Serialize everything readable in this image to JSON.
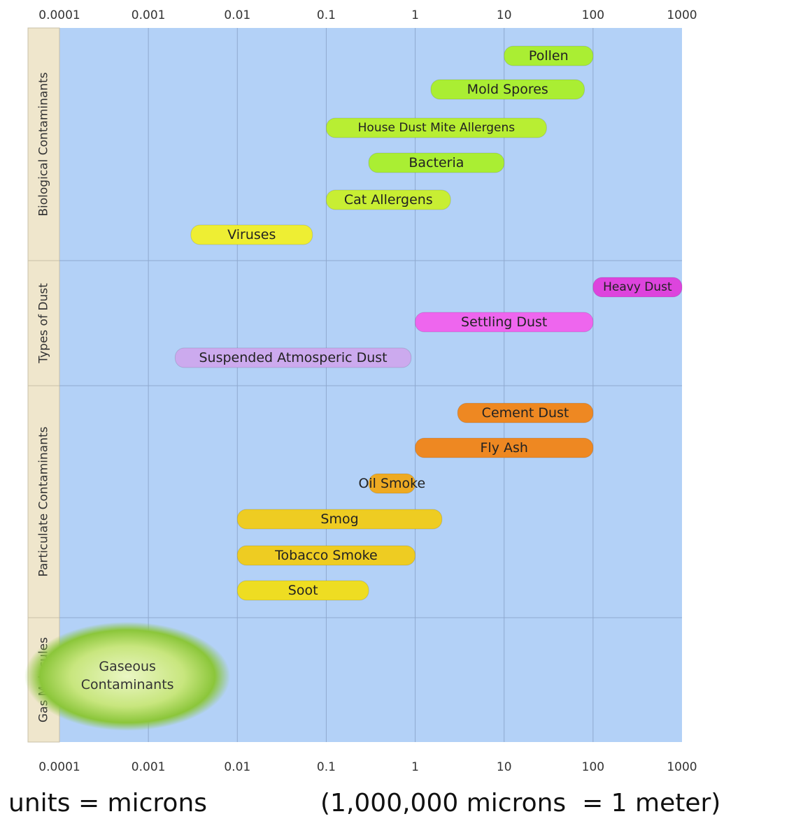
{
  "chart_data": {
    "type": "bar",
    "orientation": "horizontal-range",
    "x_scale": "log",
    "xlim": [
      0.0001,
      1000
    ],
    "x_tick_labels": [
      "0.0001",
      "0.001",
      "0.01",
      "0.1",
      "1",
      "10",
      "100",
      "1000"
    ],
    "x_ticks": [
      0.0001,
      0.001,
      0.01,
      0.1,
      1,
      10,
      100,
      1000
    ],
    "grid": true,
    "background_color": "#b3d1f7",
    "groups": [
      {
        "name": "Biological Contaminants",
        "items": [
          {
            "label": "Pollen",
            "min": 10,
            "max": 100,
            "color": "#aaee33"
          },
          {
            "label": "Mold Spores",
            "min": 1.5,
            "max": 80,
            "color": "#aaee33"
          },
          {
            "label": "House Dust Mite Allergens",
            "min": 0.1,
            "max": 30,
            "color": "#b8ee33"
          },
          {
            "label": "Bacteria",
            "min": 0.3,
            "max": 10,
            "color": "#aaee33"
          },
          {
            "label": "Cat Allergens",
            "min": 0.1,
            "max": 2.5,
            "color": "#c8ee33"
          },
          {
            "label": "Viruses",
            "min": 0.003,
            "max": 0.07,
            "color": "#eeee33"
          }
        ]
      },
      {
        "name": "Types of Dust",
        "items": [
          {
            "label": "Heavy Dust",
            "min": 100,
            "max": 1000,
            "color": "#dd44dd"
          },
          {
            "label": "Settling Dust",
            "min": 1,
            "max": 100,
            "color": "#ee66ee"
          },
          {
            "label": "Suspended Atmosperic Dust",
            "min": 0.002,
            "max": 0.9,
            "color": "#ccaaee"
          }
        ]
      },
      {
        "name": "Particulate Contaminants",
        "items": [
          {
            "label": "Cement Dust",
            "min": 3,
            "max": 100,
            "color": "#ee8822"
          },
          {
            "label": "Fly Ash",
            "min": 1,
            "max": 100,
            "color": "#ee8822"
          },
          {
            "label": "Oil Smoke",
            "min": 0.3,
            "max": 1,
            "color": "#eeaa22"
          },
          {
            "label": "Smog",
            "min": 0.01,
            "max": 2,
            "color": "#eecc22"
          },
          {
            "label": "Tobacco Smoke",
            "min": 0.01,
            "max": 1,
            "color": "#eecc22"
          },
          {
            "label": "Soot",
            "min": 0.01,
            "max": 0.3,
            "color": "#eedd22"
          }
        ]
      },
      {
        "name": "Gas Molecules",
        "items": [
          {
            "label": "Gaseous Contaminants",
            "min": 0.0001,
            "max": 0.01,
            "color": "#88cc33"
          }
        ]
      }
    ],
    "footnote": [
      "units = microns",
      "(1,000,000 microns  = 1 meter)"
    ]
  }
}
